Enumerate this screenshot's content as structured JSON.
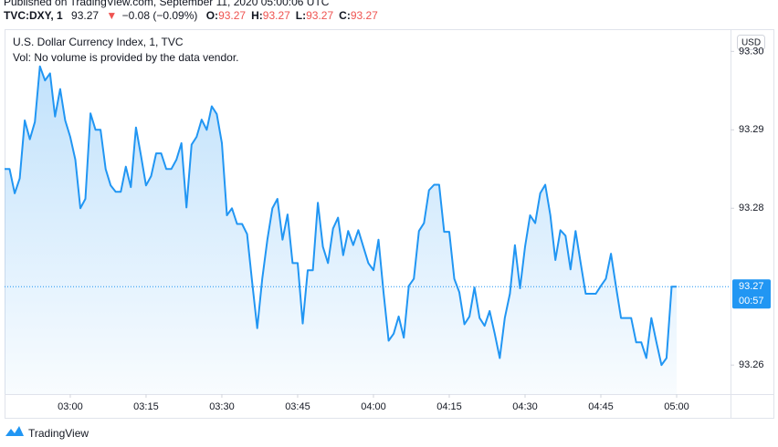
{
  "header": {
    "published": "Published on TradingView.com, September 11, 2020 05:00:06 UTC",
    "symbol": "TVC:DXY, 1",
    "price": "93.27",
    "arrow": "▼",
    "change": "−0.08 (−0.09%)",
    "ohlc": [
      {
        "label": "O:",
        "value": "93.27"
      },
      {
        "label": "H:",
        "value": "93.27"
      },
      {
        "label": "L:",
        "value": "93.27"
      },
      {
        "label": "C:",
        "value": "93.27"
      }
    ]
  },
  "footer": {
    "logo": "TradingView"
  },
  "chart_data": {
    "type": "area",
    "title": "U.S. Dollar Currency Index, 1, TVC",
    "subtitle": "Vol: No volume is provided by the data vendor.",
    "currency": "USD",
    "color": "#2196f3",
    "last_price": 93.27,
    "countdown": "00:57",
    "ylim": [
      93.2563,
      93.3026
    ],
    "yticks": [
      93.26,
      93.28,
      93.29,
      {
        "value": 93.3,
        "label": "93.30"
      }
    ],
    "categories": [
      null,
      null,
      null,
      null,
      null,
      null,
      null,
      null,
      null,
      null,
      null,
      null,
      null,
      "03:00",
      null,
      null,
      null,
      null,
      null,
      null,
      null,
      null,
      null,
      null,
      null,
      null,
      null,
      null,
      "03:15",
      null,
      null,
      null,
      null,
      null,
      null,
      null,
      null,
      null,
      null,
      null,
      null,
      null,
      null,
      "03:30",
      null,
      null,
      null,
      null,
      null,
      null,
      null,
      null,
      null,
      null,
      null,
      null,
      null,
      null,
      "03:45",
      null,
      null,
      null,
      null,
      null,
      null,
      null,
      null,
      null,
      null,
      null,
      null,
      null,
      null,
      "04:00",
      null,
      null,
      null,
      null,
      null,
      null,
      null,
      null,
      null,
      null,
      null,
      null,
      null,
      null,
      "04:15",
      null,
      null,
      null,
      null,
      null,
      null,
      null,
      null,
      null,
      null,
      null,
      null,
      null,
      null,
      "04:30",
      null,
      null,
      null,
      null,
      null,
      null,
      null,
      null,
      null,
      null,
      null,
      null,
      null,
      null,
      "04:45",
      null,
      null,
      null,
      null,
      null,
      null,
      null,
      null,
      null,
      null,
      null,
      null,
      null,
      null,
      "05:00"
    ],
    "values": [
      93.285,
      93.285,
      93.2819,
      93.2838,
      93.2912,
      93.2888,
      93.291,
      93.2981,
      93.2963,
      93.2972,
      93.2917,
      93.2952,
      93.2912,
      93.2891,
      93.2862,
      93.28,
      93.2812,
      93.2921,
      93.29,
      93.29,
      93.285,
      93.2829,
      93.2821,
      93.2821,
      93.2853,
      93.2827,
      93.2903,
      93.2867,
      93.2829,
      93.2841,
      93.287,
      93.287,
      93.285,
      93.285,
      93.2862,
      93.2883,
      93.2801,
      93.2881,
      93.2891,
      93.2913,
      93.29,
      93.293,
      93.292,
      93.2883,
      93.2791,
      93.28,
      93.278,
      93.278,
      93.2767,
      93.2705,
      93.2647,
      93.271,
      93.276,
      93.28,
      93.2812,
      93.276,
      93.2792,
      93.273,
      93.273,
      93.2653,
      93.2721,
      93.2721,
      93.2807,
      93.2751,
      93.273,
      93.2774,
      93.2788,
      93.274,
      93.2771,
      93.2753,
      93.2772,
      93.2751,
      93.273,
      93.2721,
      93.276,
      93.2693,
      93.2631,
      93.264,
      93.2662,
      93.2635,
      93.2701,
      93.271,
      93.2771,
      93.2781,
      93.2823,
      93.283,
      93.283,
      93.277,
      93.277,
      93.271,
      93.2693,
      93.2652,
      93.2662,
      93.2699,
      93.266,
      93.265,
      93.2669,
      93.264,
      93.2609,
      93.266,
      93.2691,
      93.2753,
      93.2698,
      93.2751,
      93.2791,
      93.2781,
      93.2819,
      93.283,
      93.2791,
      93.2734,
      93.2772,
      93.2765,
      93.2722,
      93.2771,
      93.273,
      93.2691,
      93.2691,
      93.2691,
      93.2701,
      93.271,
      93.2742,
      93.27,
      93.266,
      93.266,
      93.266,
      93.2629,
      93.2629,
      93.2609,
      93.266,
      93.2629,
      93.26,
      93.2609,
      93.27,
      93.27
    ]
  }
}
